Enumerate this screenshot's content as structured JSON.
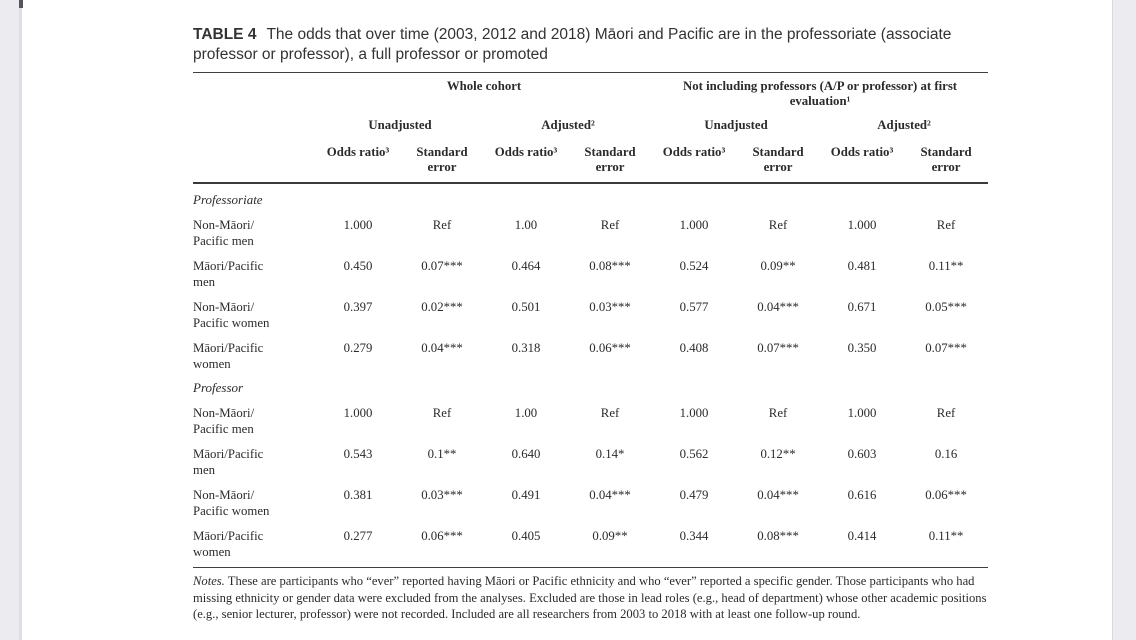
{
  "page": {
    "title_label": "TABLE 4",
    "title_text": "The odds that over time (2003, 2012 and 2018) Māori and Pacific are in the professoriate (associate professor or professor), a full professor or promoted"
  },
  "table": {
    "spanners": [
      "Whole cohort",
      "Not including professors (A/P or professor) at first\nevaluation¹"
    ],
    "subspanners": [
      "Unadjusted",
      "Adjusted²",
      "Unadjusted",
      "Adjusted²"
    ],
    "col_headers": [
      "Odds ratio³",
      "Standard\nerror",
      "Odds ratio³",
      "Standard\nerror",
      "Odds ratio³",
      "Standard\nerror",
      "Odds ratio³",
      "Standard\nerror"
    ],
    "sections": [
      {
        "name": "Professoriate",
        "rows": [
          {
            "label": "Non-Māori/\nPacific men",
            "values": [
              "1.000",
              "Ref",
              "1.00",
              "Ref",
              "1.000",
              "Ref",
              "1.000",
              "Ref"
            ]
          },
          {
            "label": "Māori/Pacific\nmen",
            "values": [
              "0.450",
              "0.07***",
              "0.464",
              "0.08***",
              "0.524",
              "0.09**",
              "0.481",
              "0.11**"
            ]
          },
          {
            "label": "Non-Māori/\nPacific women",
            "values": [
              "0.397",
              "0.02***",
              "0.501",
              "0.03***",
              "0.577",
              "0.04***",
              "0.671",
              "0.05***"
            ]
          },
          {
            "label": "Māori/Pacific\nwomen",
            "values": [
              "0.279",
              "0.04***",
              "0.318",
              "0.06***",
              "0.408",
              "0.07***",
              "0.350",
              "0.07***"
            ]
          }
        ]
      },
      {
        "name": "Professor",
        "rows": [
          {
            "label": "Non-Māori/\nPacific men",
            "values": [
              "1.000",
              "Ref",
              "1.00",
              "Ref",
              "1.000",
              "Ref",
              "1.000",
              "Ref"
            ]
          },
          {
            "label": "Māori/Pacific\nmen",
            "values": [
              "0.543",
              "0.1**",
              "0.640",
              "0.14*",
              "0.562",
              "0.12**",
              "0.603",
              "0.16"
            ]
          },
          {
            "label": "Non-Māori/\nPacific women",
            "values": [
              "0.381",
              "0.03***",
              "0.491",
              "0.04***",
              "0.479",
              "0.04***",
              "0.616",
              "0.06***"
            ]
          },
          {
            "label": "Māori/Pacific\nwomen",
            "values": [
              "0.277",
              "0.06***",
              "0.405",
              "0.09**",
              "0.344",
              "0.08***",
              "0.414",
              "0.11**"
            ]
          }
        ]
      }
    ],
    "notes_lead": "Notes.",
    "notes_text": " These are participants who “ever” reported having Māori or Pacific ethnicity and who “ever” reported a specific gender. Those participants who had missing ethnicity or gender data were excluded from the analyses. Excluded are those in lead roles (e.g., head of department) whose other academic positions (e.g., senior lecturer, professor) were not recorded. Included are all researchers from 2003 to 2018 with at least one follow-up round."
  }
}
